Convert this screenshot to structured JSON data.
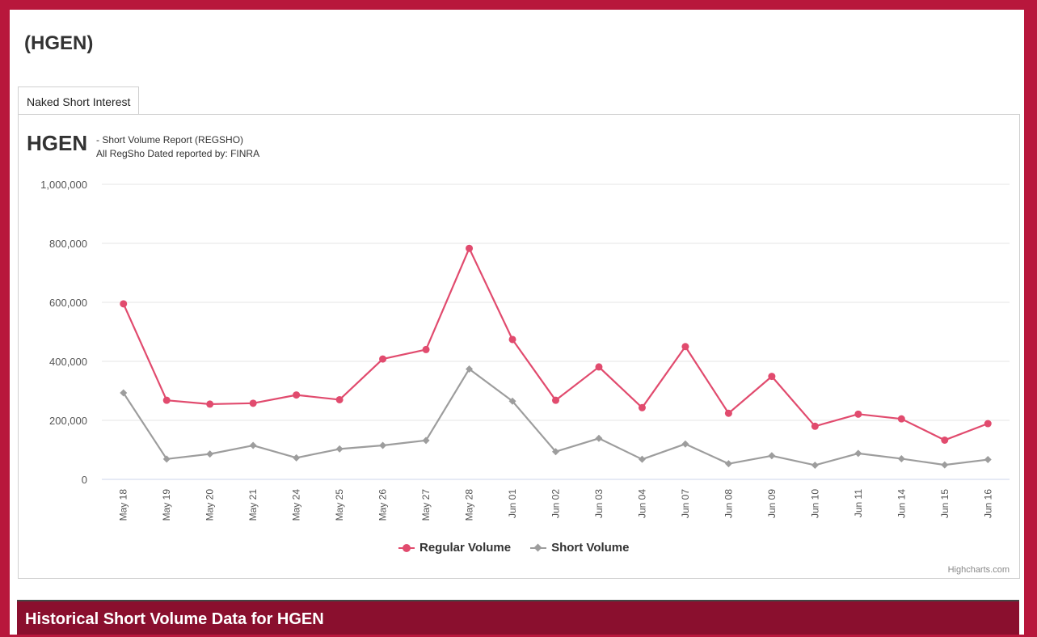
{
  "page": {
    "title": "(HGEN)"
  },
  "tabs": [
    {
      "label": "Naked Short Interest"
    }
  ],
  "chart_header": {
    "ticker": "HGEN",
    "subtitle_line1": "- Short Volume Report  (REGSHO)",
    "subtitle_line2": "All RegSho Dated reported by: FINRA"
  },
  "chart_data": {
    "type": "line",
    "title": "HGEN",
    "xlabel": "",
    "ylabel": "",
    "ylim": [
      0,
      1000000
    ],
    "yticks": [
      0,
      200000,
      400000,
      600000,
      800000,
      1000000
    ],
    "ytick_labels": [
      "0",
      "200,000",
      "400,000",
      "600,000",
      "800,000",
      "1,000,000"
    ],
    "categories": [
      "May 18",
      "May 19",
      "May 20",
      "May 21",
      "May 24",
      "May 25",
      "May 26",
      "May 27",
      "May 28",
      "Jun 01",
      "Jun 02",
      "Jun 03",
      "Jun 04",
      "Jun 07",
      "Jun 08",
      "Jun 09",
      "Jun 10",
      "Jun 11",
      "Jun 14",
      "Jun 15",
      "Jun 16"
    ],
    "series": [
      {
        "name": "Regular Volume",
        "color": "#e14b6e",
        "marker": "circle",
        "values": [
          595000,
          268000,
          255000,
          258000,
          286000,
          270000,
          408000,
          440000,
          783000,
          474000,
          268000,
          381000,
          243000,
          450000,
          224000,
          349000,
          180000,
          221000,
          205000,
          133000,
          189000
        ]
      },
      {
        "name": "Short Volume",
        "color": "#9d9d9d",
        "marker": "diamond",
        "values": [
          293000,
          69000,
          86000,
          115000,
          73000,
          103000,
          115000,
          132000,
          374000,
          265000,
          94000,
          139000,
          68000,
          120000,
          53000,
          80000,
          48000,
          88000,
          70000,
          49000,
          67000
        ]
      }
    ],
    "legend": "bottom-center",
    "credits": "Highcharts.com"
  },
  "historical": {
    "title": "Historical Short Volume Data for HGEN"
  }
}
